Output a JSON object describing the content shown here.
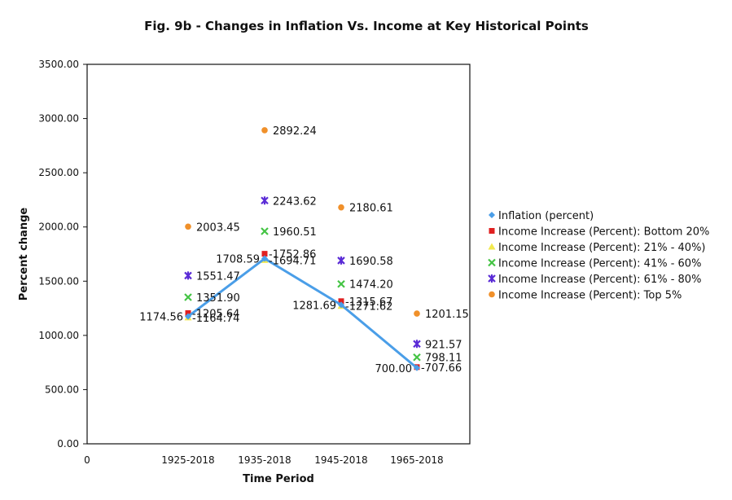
{
  "chart_data": {
    "type": "line",
    "title": "Fig. 9b - Changes in Inflation Vs. Income at Key Historical Points",
    "xlabel": "Time Period",
    "ylabel": "Percent change",
    "categories": [
      "1925-2018",
      "1935-2018",
      "1945-2018",
      "1965-2018"
    ],
    "x_origin_label": "0",
    "ylim": [
      0,
      3500
    ],
    "y_ticks": [
      "0.00",
      "500.00",
      "1000.00",
      "1500.00",
      "2000.00",
      "2500.00",
      "3000.00",
      "3500.00"
    ],
    "grid": false,
    "legend_position": "right",
    "series": [
      {
        "name": "Inflation (percent)",
        "color": "#4a9ee8",
        "marker": "diamond",
        "values": [
          1174.56,
          1708.59,
          1281.69,
          700.0
        ],
        "labels": [
          "1174.56",
          "1708.59",
          "1281.69",
          "700.00"
        ]
      },
      {
        "name": "Income Increase (Percent): Bottom 20%",
        "color": "#e02020",
        "marker": "square",
        "values": [
          1205.64,
          1752.86,
          1315.67,
          707.66
        ],
        "labels": [
          "1205.64",
          "1752.86",
          "1315.67",
          "707.66"
        ]
      },
      {
        "name": "Income Increase (Percent): 21% - 40%)",
        "color": "#f2e94e",
        "marker": "triangle",
        "values": [
          1164.74,
          1694.71,
          1271.62,
          null
        ],
        "labels": [
          "1164.74",
          "1694.71",
          "1271.62",
          ""
        ]
      },
      {
        "name": "Income Increase (Percent): 41% - 60%",
        "color": "#44c444",
        "marker": "x",
        "values": [
          1351.9,
          1960.51,
          1474.2,
          798.11
        ],
        "labels": [
          "1351.90",
          "1960.51",
          "1474.20",
          "798.11"
        ]
      },
      {
        "name": "Income Increase (Percent): 61% - 80%",
        "color": "#5a2bd6",
        "marker": "star",
        "values": [
          1551.47,
          2243.62,
          1690.58,
          921.57
        ],
        "labels": [
          "1551.47",
          "2243.62",
          "1690.58",
          "921.57"
        ]
      },
      {
        "name": "Income Increase (Percent): Top 5%",
        "color": "#f0902a",
        "marker": "circle",
        "values": [
          2003.45,
          2892.24,
          2180.61,
          1201.15
        ],
        "labels": [
          "2003.45",
          "2892.24",
          "2180.61",
          "1201.15"
        ]
      }
    ]
  }
}
